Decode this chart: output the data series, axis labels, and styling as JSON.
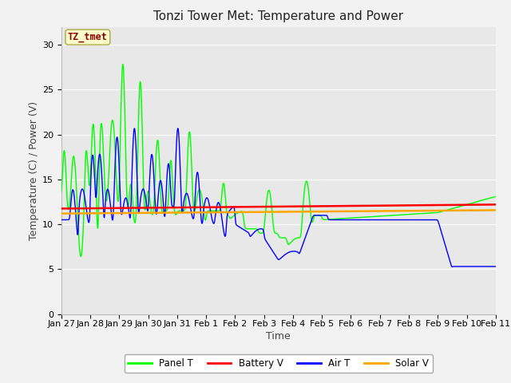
{
  "title": "Tonzi Tower Met: Temperature and Power",
  "xlabel": "Time",
  "ylabel": "Temperature (C) / Power (V)",
  "ylim": [
    0,
    32
  ],
  "yticks": [
    0,
    5,
    10,
    15,
    20,
    25,
    30
  ],
  "annotation_text": "TZ_tmet",
  "annotation_color": "#8B0000",
  "annotation_bg": "#FFFFCC",
  "line_colors": {
    "panel_t": "#00FF00",
    "battery_v": "#FF0000",
    "air_t": "#0000FF",
    "solar_v": "#FFA500"
  },
  "legend_labels": [
    "Panel T",
    "Battery V",
    "Air T",
    "Solar V"
  ],
  "x_tick_labels": [
    "Jan 27",
    "Jan 28",
    "Jan 29",
    "Jan 30",
    "Jan 31",
    "Feb 1",
    "Feb 2",
    "Feb 3",
    "Feb 4",
    "Feb 5",
    "Feb 6",
    "Feb 7",
    "Feb 8",
    "Feb 9",
    "Feb 10",
    "Feb 11"
  ],
  "title_fontsize": 11,
  "axis_fontsize": 9,
  "tick_fontsize": 8,
  "fig_bg": "#F2F2F2",
  "plot_bg": "#E8E8E8",
  "grid_color": "#FFFFFF"
}
